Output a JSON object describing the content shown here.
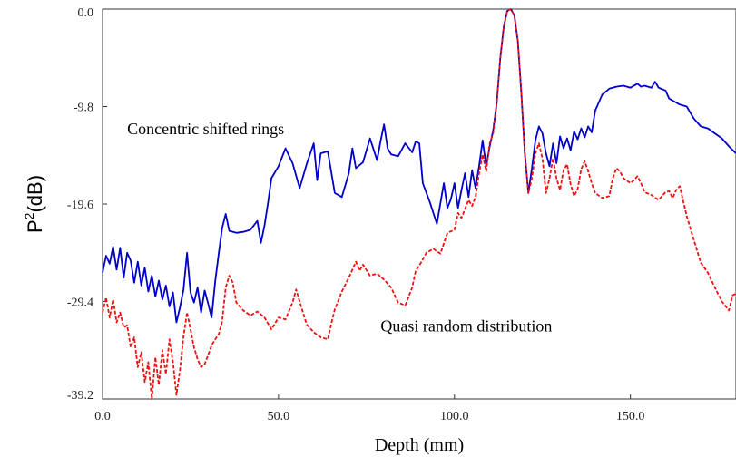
{
  "chart_data": {
    "type": "line",
    "xlabel": "Depth (mm)",
    "ylabel": {
      "base": "P",
      "sup": "2",
      "rest": "(dB)"
    },
    "xlim": [
      0,
      180
    ],
    "ylim": [
      -39.2,
      0
    ],
    "xticks": [
      {
        "value": 0,
        "label": "0.0"
      },
      {
        "value": 50,
        "label": "50.0"
      },
      {
        "value": 100,
        "label": "100.0"
      },
      {
        "value": 150,
        "label": "150.0"
      }
    ],
    "yticks": [
      {
        "value": 0,
        "label": "0.0"
      },
      {
        "value": -9.8,
        "label": "-9.8"
      },
      {
        "value": -19.6,
        "label": "-19.6"
      },
      {
        "value": -29.4,
        "label": "-29.4"
      },
      {
        "value": -39.2,
        "label": "-39.2"
      }
    ],
    "grid": false,
    "annotations": [
      {
        "text": "Concentric shifted rings",
        "x": 7,
        "y": -12.6
      },
      {
        "text": "Quasi random distribution",
        "x": 79,
        "y": -32.4
      }
    ],
    "series": [
      {
        "color": "#0000cc",
        "style": "solid",
        "points": [
          [
            0,
            -26.5
          ],
          [
            1,
            -24.8
          ],
          [
            2,
            -25.6
          ],
          [
            3,
            -23.9
          ],
          [
            4,
            -26.2
          ],
          [
            5,
            -24.0
          ],
          [
            6,
            -27.0
          ],
          [
            7,
            -24.5
          ],
          [
            8,
            -25.3
          ],
          [
            9,
            -27.5
          ],
          [
            10,
            -25.4
          ],
          [
            11,
            -27.8
          ],
          [
            12,
            -26.0
          ],
          [
            13,
            -28.4
          ],
          [
            14,
            -26.8
          ],
          [
            15,
            -28.9
          ],
          [
            16,
            -27.3
          ],
          [
            17,
            -29.2
          ],
          [
            18,
            -27.8
          ],
          [
            19,
            -29.9
          ],
          [
            20,
            -28.5
          ],
          [
            21,
            -31.5
          ],
          [
            22,
            -30.0
          ],
          [
            23,
            -28.2
          ],
          [
            24,
            -24.5
          ],
          [
            25,
            -28.5
          ],
          [
            26,
            -29.5
          ],
          [
            27,
            -28.0
          ],
          [
            28,
            -30.5
          ],
          [
            29,
            -28.3
          ],
          [
            30,
            -29.6
          ],
          [
            31,
            -31.0
          ],
          [
            32,
            -27.4
          ],
          [
            33,
            -24.6
          ],
          [
            34,
            -22.0
          ],
          [
            35,
            -20.6
          ],
          [
            36,
            -22.3
          ],
          [
            38,
            -22.5
          ],
          [
            40,
            -22.4
          ],
          [
            42,
            -22.2
          ],
          [
            44,
            -21.3
          ],
          [
            45,
            -23.5
          ],
          [
            46,
            -21.8
          ],
          [
            47,
            -19.5
          ],
          [
            48,
            -17.0
          ],
          [
            50,
            -15.8
          ],
          [
            52,
            -14.0
          ],
          [
            54,
            -15.5
          ],
          [
            56,
            -18.0
          ],
          [
            58,
            -15.6
          ],
          [
            60,
            -13.5
          ],
          [
            61,
            -17.2
          ],
          [
            62,
            -14.5
          ],
          [
            64,
            -14.3
          ],
          [
            66,
            -18.5
          ],
          [
            68,
            -18.9
          ],
          [
            70,
            -16.5
          ],
          [
            71,
            -14.0
          ],
          [
            72,
            -16.0
          ],
          [
            74,
            -15.4
          ],
          [
            76,
            -13.0
          ],
          [
            78,
            -15.2
          ],
          [
            79,
            -13.3
          ],
          [
            80,
            -11.6
          ],
          [
            81,
            -14.0
          ],
          [
            82,
            -14.6
          ],
          [
            84,
            -14.8
          ],
          [
            86,
            -13.5
          ],
          [
            88,
            -14.4
          ],
          [
            89,
            -13.3
          ],
          [
            90,
            -13.5
          ],
          [
            91,
            -17.5
          ],
          [
            93,
            -19.4
          ],
          [
            95,
            -21.6
          ],
          [
            97,
            -17.5
          ],
          [
            98,
            -20.0
          ],
          [
            99,
            -19.1
          ],
          [
            100,
            -17.5
          ],
          [
            101,
            -20.0
          ],
          [
            102,
            -18.2
          ],
          [
            103,
            -16.5
          ],
          [
            104,
            -18.9
          ],
          [
            105,
            -16.2
          ],
          [
            106,
            -18.0
          ],
          [
            107,
            -15.8
          ],
          [
            108,
            -13.2
          ],
          [
            109,
            -15.8
          ],
          [
            110,
            -13.8
          ],
          [
            111,
            -12.2
          ],
          [
            112,
            -9.5
          ],
          [
            113,
            -5.0
          ],
          [
            114,
            -1.8
          ],
          [
            115,
            -0.2
          ],
          [
            116,
            0.0
          ],
          [
            117,
            -0.6
          ],
          [
            118,
            -3.2
          ],
          [
            119,
            -8.5
          ],
          [
            120,
            -14.5
          ],
          [
            121,
            -18.5
          ],
          [
            122,
            -16.0
          ],
          [
            123,
            -13.2
          ],
          [
            124,
            -11.8
          ],
          [
            125,
            -12.5
          ],
          [
            126,
            -14.5
          ],
          [
            127,
            -15.8
          ],
          [
            128,
            -13.5
          ],
          [
            129,
            -15.5
          ],
          [
            130,
            -12.8
          ],
          [
            131,
            -14.0
          ],
          [
            132,
            -13.0
          ],
          [
            133,
            -14.2
          ],
          [
            134,
            -12.3
          ],
          [
            135,
            -13.1
          ],
          [
            136,
            -12.0
          ],
          [
            137,
            -12.9
          ],
          [
            138,
            -11.8
          ],
          [
            139,
            -12.4
          ],
          [
            140,
            -10.2
          ],
          [
            142,
            -8.6
          ],
          [
            144,
            -8.0
          ],
          [
            146,
            -7.8
          ],
          [
            148,
            -7.7
          ],
          [
            150,
            -7.9
          ],
          [
            152,
            -7.5
          ],
          [
            153,
            -7.8
          ],
          [
            154,
            -7.7
          ],
          [
            156,
            -7.9
          ],
          [
            157,
            -7.3
          ],
          [
            158,
            -7.9
          ],
          [
            160,
            -8.2
          ],
          [
            161,
            -9.0
          ],
          [
            162,
            -9.2
          ],
          [
            164,
            -9.6
          ],
          [
            166,
            -9.8
          ],
          [
            168,
            -11.0
          ],
          [
            170,
            -11.8
          ],
          [
            172,
            -12.0
          ],
          [
            174,
            -12.5
          ],
          [
            176,
            -13.0
          ],
          [
            178,
            -13.8
          ],
          [
            180,
            -14.5
          ]
        ]
      },
      {
        "color": "#ee1111",
        "style": "dashed",
        "points": [
          [
            0,
            -30.5
          ],
          [
            1,
            -29.0
          ],
          [
            2,
            -31.0
          ],
          [
            3,
            -29.2
          ],
          [
            4,
            -31.5
          ],
          [
            5,
            -30.5
          ],
          [
            6,
            -32.0
          ],
          [
            7,
            -31.8
          ],
          [
            8,
            -34.0
          ],
          [
            9,
            -33.0
          ],
          [
            10,
            -36.0
          ],
          [
            11,
            -34.5
          ],
          [
            12,
            -37.5
          ],
          [
            13,
            -35.5
          ],
          [
            14,
            -39.2
          ],
          [
            15,
            -35.0
          ],
          [
            16,
            -37.8
          ],
          [
            17,
            -34.3
          ],
          [
            18,
            -36.7
          ],
          [
            19,
            -33.2
          ],
          [
            20,
            -35.5
          ],
          [
            21,
            -38.8
          ],
          [
            22,
            -36.3
          ],
          [
            23,
            -32.9
          ],
          [
            24,
            -30.5
          ],
          [
            25,
            -32.2
          ],
          [
            26,
            -34.0
          ],
          [
            27,
            -35.2
          ],
          [
            28,
            -36.0
          ],
          [
            29,
            -35.7
          ],
          [
            30,
            -34.8
          ],
          [
            31,
            -33.8
          ],
          [
            32,
            -33.2
          ],
          [
            33,
            -32.7
          ],
          [
            34,
            -31.4
          ],
          [
            35,
            -28.0
          ],
          [
            36,
            -26.8
          ],
          [
            37,
            -27.5
          ],
          [
            38,
            -29.5
          ],
          [
            40,
            -30.3
          ],
          [
            42,
            -30.8
          ],
          [
            44,
            -30.4
          ],
          [
            46,
            -31.0
          ],
          [
            48,
            -32.2
          ],
          [
            50,
            -31.0
          ],
          [
            52,
            -31.2
          ],
          [
            54,
            -29.5
          ],
          [
            55,
            -28.2
          ],
          [
            56,
            -29.4
          ],
          [
            58,
            -31.7
          ],
          [
            60,
            -32.5
          ],
          [
            62,
            -33.0
          ],
          [
            64,
            -33.2
          ],
          [
            65,
            -31.6
          ],
          [
            66,
            -30.2
          ],
          [
            68,
            -28.4
          ],
          [
            70,
            -27.0
          ],
          [
            72,
            -25.4
          ],
          [
            73,
            -26.3
          ],
          [
            74,
            -25.7
          ],
          [
            76,
            -26.8
          ],
          [
            78,
            -26.6
          ],
          [
            80,
            -27.2
          ],
          [
            82,
            -28.0
          ],
          [
            84,
            -29.5
          ],
          [
            86,
            -29.8
          ],
          [
            88,
            -28.0
          ],
          [
            89,
            -26.3
          ],
          [
            90,
            -25.8
          ],
          [
            92,
            -24.5
          ],
          [
            94,
            -24.1
          ],
          [
            96,
            -24.6
          ],
          [
            98,
            -22.5
          ],
          [
            100,
            -22.2
          ],
          [
            101,
            -20.5
          ],
          [
            102,
            -21.0
          ],
          [
            104,
            -19.2
          ],
          [
            105,
            -19.8
          ],
          [
            106,
            -18.9
          ],
          [
            107,
            -16.5
          ],
          [
            108,
            -14.6
          ],
          [
            109,
            -16.3
          ],
          [
            110,
            -13.5
          ],
          [
            111,
            -12.5
          ],
          [
            112,
            -9.5
          ],
          [
            113,
            -5.0
          ],
          [
            114,
            -1.8
          ],
          [
            115,
            -0.2
          ],
          [
            116,
            0.0
          ],
          [
            117,
            -0.6
          ],
          [
            118,
            -3.2
          ],
          [
            119,
            -8.5
          ],
          [
            120,
            -14.5
          ],
          [
            121,
            -18.5
          ],
          [
            122,
            -17.0
          ],
          [
            123,
            -14.5
          ],
          [
            124,
            -13.5
          ],
          [
            125,
            -15.0
          ],
          [
            126,
            -18.5
          ],
          [
            127,
            -17.0
          ],
          [
            128,
            -15.0
          ],
          [
            129,
            -17.0
          ],
          [
            130,
            -18.2
          ],
          [
            131,
            -16.2
          ],
          [
            132,
            -15.6
          ],
          [
            133,
            -17.6
          ],
          [
            134,
            -18.8
          ],
          [
            135,
            -18.1
          ],
          [
            136,
            -16.1
          ],
          [
            137,
            -15.3
          ],
          [
            138,
            -16.3
          ],
          [
            139,
            -17.5
          ],
          [
            140,
            -18.5
          ],
          [
            142,
            -19.0
          ],
          [
            144,
            -18.8
          ],
          [
            145,
            -17.0
          ],
          [
            146,
            -16.0
          ],
          [
            147,
            -16.3
          ],
          [
            148,
            -17.0
          ],
          [
            150,
            -17.5
          ],
          [
            151,
            -17.2
          ],
          [
            152,
            -16.8
          ],
          [
            153,
            -17.5
          ],
          [
            154,
            -18.4
          ],
          [
            156,
            -18.7
          ],
          [
            158,
            -19.2
          ],
          [
            160,
            -18.4
          ],
          [
            161,
            -18.3
          ],
          [
            162,
            -19.0
          ],
          [
            163,
            -18.2
          ],
          [
            164,
            -17.8
          ],
          [
            166,
            -20.8
          ],
          [
            168,
            -23.2
          ],
          [
            170,
            -25.5
          ],
          [
            172,
            -26.5
          ],
          [
            174,
            -28.0
          ],
          [
            176,
            -29.4
          ],
          [
            178,
            -30.3
          ],
          [
            179,
            -28.8
          ],
          [
            180,
            -28.6
          ]
        ]
      }
    ]
  }
}
